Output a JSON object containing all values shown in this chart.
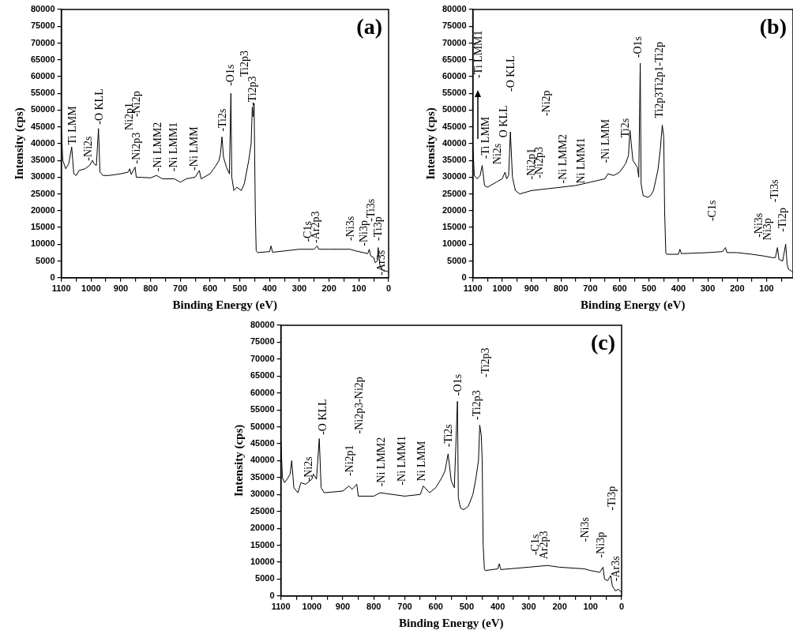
{
  "chart_data": [
    {
      "type": "line",
      "title": "(a)",
      "xlabel": "Binding Energy (eV)",
      "ylabel": "Intensity (cps)",
      "marker": "none",
      "grid": false,
      "legend": false,
      "xlim": [
        1100,
        0
      ],
      "ylim": [
        0,
        80000
      ],
      "xticks": [
        1100,
        {
          "value": 1050,
          "label": null
        },
        1000,
        {
          "value": 950,
          "label": null
        },
        900,
        {
          "value": 850,
          "label": null
        },
        800,
        {
          "value": 750,
          "label": null
        },
        700,
        {
          "value": 650,
          "label": null
        },
        600,
        {
          "value": 550,
          "label": null
        },
        500,
        {
          "value": 450,
          "label": null
        },
        400,
        {
          "value": 350,
          "label": null
        },
        300,
        {
          "value": 250,
          "label": null
        },
        200,
        {
          "value": 150,
          "label": null
        },
        100,
        {
          "value": 50,
          "label": null
        },
        0
      ],
      "yticks": [
        0,
        5000,
        10000,
        15000,
        20000,
        25000,
        30000,
        35000,
        40000,
        45000,
        50000,
        55000,
        60000,
        65000,
        70000,
        75000,
        80000
      ],
      "x": [
        1100,
        1095,
        1085,
        1075,
        1065,
        1058,
        1050,
        1040,
        1020,
        1005,
        995,
        990,
        982,
        975,
        970,
        960,
        940,
        900,
        875,
        870,
        865,
        852,
        848,
        800,
        780,
        760,
        720,
        700,
        680,
        650,
        636,
        630,
        600,
        580,
        570,
        565,
        560,
        555,
        545,
        535,
        530,
        527,
        520,
        510,
        495,
        485,
        470,
        462,
        458,
        455,
        452,
        448,
        445,
        440,
        400,
        395,
        390,
        300,
        250,
        240,
        235,
        200,
        130,
        110,
        70,
        65,
        60,
        50,
        45,
        38,
        35,
        30,
        25,
        15,
        5,
        0
      ],
      "series": [
        {
          "color": "#000000",
          "values": [
            45000,
            35000,
            32500,
            34000,
            39000,
            31000,
            30500,
            32000,
            32500,
            33500,
            35000,
            34000,
            33500,
            44500,
            31500,
            30500,
            30500,
            31000,
            31500,
            32500,
            30800,
            33000,
            30000,
            29800,
            30500,
            29500,
            29500,
            28500,
            29500,
            30000,
            32000,
            29500,
            31000,
            33500,
            35000,
            37000,
            42000,
            36000,
            33000,
            31000,
            55000,
            30000,
            26000,
            27000,
            26000,
            28000,
            35000,
            40000,
            51000,
            48000,
            52000,
            20000,
            8000,
            7500,
            7800,
            9500,
            7600,
            8500,
            8500,
            9500,
            8500,
            8500,
            8500,
            8000,
            7200,
            8500,
            6500,
            6000,
            4500,
            5000,
            9000,
            4000,
            2500,
            2000,
            2000,
            1500
          ]
        }
      ],
      "annotations": [
        "Ti LMM",
        "-Ni2s",
        "-O KLL",
        "-Ni2p3",
        "Ni2p1",
        "-Ni2p",
        "-Ni LMM2",
        "-Ni LMM1",
        "-Ni LMM",
        "-Ti2s",
        "-O1s",
        "Ti2p3",
        "-Ti2p3",
        "-C1s",
        "-Ar2p3",
        "-Ni3s",
        "-Ni3p",
        "-Ti3s",
        "-Ti3p",
        "-Ar3s"
      ]
    },
    {
      "type": "line",
      "title": "(b)",
      "xlabel": "Binding Energy (eV)",
      "ylabel": "Intensity (cps)",
      "marker": "none",
      "grid": false,
      "legend": false,
      "xlim": [
        1100,
        10
      ],
      "ylim": [
        0,
        80000
      ],
      "xticks": [
        1100,
        {
          "value": 1050,
          "label": null
        },
        1000,
        {
          "value": 950,
          "label": null
        },
        900,
        {
          "value": 850,
          "label": null
        },
        800,
        {
          "value": 750,
          "label": null
        },
        700,
        {
          "value": 650,
          "label": null
        },
        600,
        {
          "value": 550,
          "label": null
        },
        500,
        {
          "value": 450,
          "label": null
        },
        400,
        {
          "value": 350,
          "label": null
        },
        300,
        {
          "value": 250,
          "label": null
        },
        200,
        {
          "value": 150,
          "label": null
        },
        100,
        {
          "value": 50,
          "label": null
        }
      ],
      "yticks": [
        0,
        5000,
        10000,
        15000,
        20000,
        25000,
        30000,
        35000,
        40000,
        45000,
        50000,
        55000,
        60000,
        65000,
        70000,
        75000,
        80000
      ],
      "x": [
        1100,
        1095,
        1085,
        1075,
        1068,
        1060,
        1050,
        1020,
        1000,
        990,
        985,
        978,
        972,
        965,
        955,
        940,
        900,
        850,
        800,
        750,
        700,
        650,
        640,
        620,
        600,
        580,
        570,
        565,
        555,
        540,
        535,
        530,
        527,
        520,
        505,
        495,
        485,
        470,
        462,
        455,
        450,
        447,
        443,
        440,
        400,
        395,
        390,
        300,
        250,
        240,
        235,
        200,
        150,
        110,
        80,
        70,
        63,
        58,
        45,
        35,
        30,
        25,
        15,
        10
      ],
      "series": [
        {
          "color": "#000000",
          "values": [
            40000,
            30500,
            29500,
            30500,
            33500,
            27500,
            27000,
            28500,
            29500,
            31500,
            29500,
            30500,
            43500,
            30000,
            26000,
            25000,
            26000,
            26500,
            27000,
            27500,
            28500,
            29500,
            31000,
            30500,
            31500,
            34000,
            36500,
            44000,
            35000,
            33000,
            30000,
            64000,
            28000,
            24500,
            24000,
            24500,
            26000,
            32000,
            38000,
            45500,
            42000,
            20000,
            7500,
            7000,
            7000,
            8500,
            7200,
            7500,
            7800,
            9000,
            7500,
            7500,
            7000,
            6500,
            6000,
            6000,
            9000,
            5500,
            5000,
            10000,
            4000,
            2500,
            2000,
            1500
          ]
        }
      ],
      "annotations": [
        "-Ti LMM",
        "-Ti LMM1",
        "Ni2s",
        "O KLL",
        "-O KLL",
        "-Ni2p1",
        "-Ni2p3",
        "-Ni2p",
        "-Ni LMM2",
        "Ni LMM1",
        "-Ni LMM",
        "Ti2s",
        "-O1s",
        "Ti2p3Ti2p1-Ti2p",
        "-C1s",
        "-Ni3s",
        "Ni3p",
        "-Ti3s",
        "-Ti2p"
      ]
    },
    {
      "type": "line",
      "title": "(c)",
      "xlabel": "Binding Energy (eV)",
      "ylabel": "Intensity (cps)",
      "marker": "none",
      "grid": false,
      "legend": false,
      "xlim": [
        1100,
        0
      ],
      "ylim": [
        0,
        80000
      ],
      "xticks": [
        1100,
        {
          "value": 1050,
          "label": null
        },
        1000,
        {
          "value": 950,
          "label": null
        },
        900,
        {
          "value": 850,
          "label": null
        },
        800,
        {
          "value": 750,
          "label": null
        },
        700,
        {
          "value": 650,
          "label": null
        },
        600,
        {
          "value": 550,
          "label": null
        },
        500,
        {
          "value": 450,
          "label": null
        },
        400,
        {
          "value": 350,
          "label": null
        },
        300,
        {
          "value": 250,
          "label": null
        },
        200,
        {
          "value": 150,
          "label": null
        },
        100,
        {
          "value": 50,
          "label": null
        },
        0
      ],
      "yticks": [
        0,
        5000,
        10000,
        15000,
        20000,
        25000,
        30000,
        35000,
        40000,
        45000,
        50000,
        55000,
        60000,
        65000,
        70000,
        75000,
        80000
      ],
      "x": [
        1100,
        1095,
        1088,
        1080,
        1070,
        1065,
        1058,
        1045,
        1035,
        1020,
        1000,
        995,
        985,
        976,
        970,
        960,
        900,
        880,
        870,
        855,
        850,
        800,
        780,
        700,
        650,
        640,
        620,
        600,
        580,
        570,
        560,
        550,
        540,
        530,
        527,
        520,
        510,
        495,
        480,
        470,
        462,
        458,
        453,
        450,
        447,
        443,
        440,
        400,
        395,
        390,
        300,
        240,
        200,
        120,
        100,
        70,
        60,
        55,
        45,
        35,
        30,
        20,
        10,
        0
      ],
      "series": [
        {
          "color": "#000000",
          "values": [
            46000,
            35000,
            33500,
            34500,
            36000,
            40000,
            32000,
            30500,
            33500,
            33000,
            34500,
            36000,
            34500,
            46500,
            32000,
            30500,
            31000,
            32500,
            31500,
            33000,
            29500,
            29500,
            30500,
            29500,
            30000,
            32500,
            30500,
            32000,
            35000,
            37000,
            42000,
            34000,
            32000,
            57500,
            29000,
            26000,
            25500,
            26500,
            30000,
            35000,
            40000,
            50500,
            47500,
            40000,
            15000,
            8000,
            7500,
            8000,
            9500,
            7800,
            8500,
            9000,
            8500,
            8000,
            7500,
            7000,
            8500,
            5000,
            4500,
            6000,
            3000,
            1500,
            2000,
            1000
          ]
        }
      ],
      "annotations": [
        "-Ni2s",
        "-O KLL",
        "-Ni2p1",
        "-Ni2p3-Ni2p",
        "-Ni LMM2",
        "-Ni LMM1",
        "Ni LMM",
        "-Ti2s",
        "-O1s",
        "-Ti2p3",
        "-Ti2p3",
        "-C1s",
        "Ar2p3",
        "-Ni3s",
        "-Ni3p",
        "-Ti3p",
        "-Ar3s"
      ]
    }
  ]
}
